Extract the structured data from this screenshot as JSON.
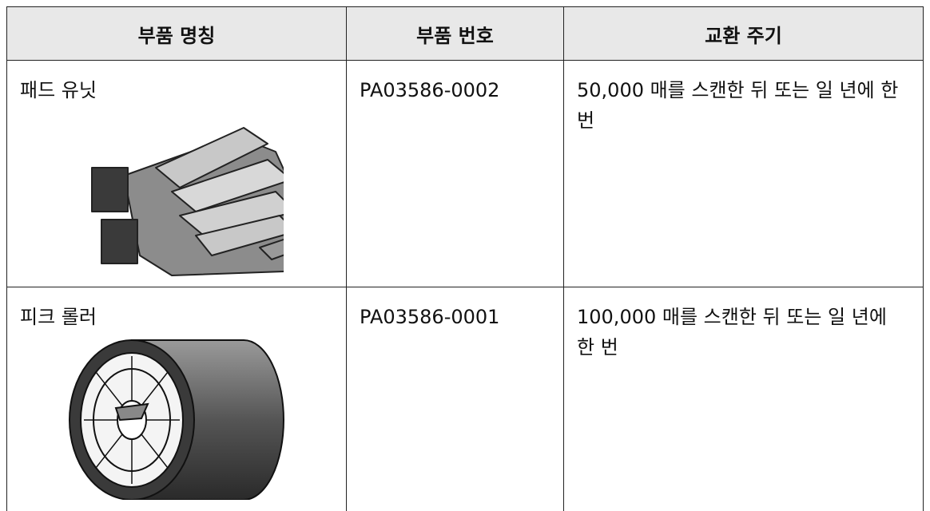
{
  "table": {
    "header": [
      "부품 명칭",
      "부품 번호",
      "교환 주기"
    ],
    "rows": [
      [
        "패드 유닛",
        "PA03586-0002",
        "50,000 매를 스캔한 뒤 또는 일 년에 한 번"
      ],
      [
        "피크 롤러",
        "PA03586-0001",
        "100,000 매를 스캔한 뒤 또는 일 년에 한 번"
      ]
    ]
  }
}
